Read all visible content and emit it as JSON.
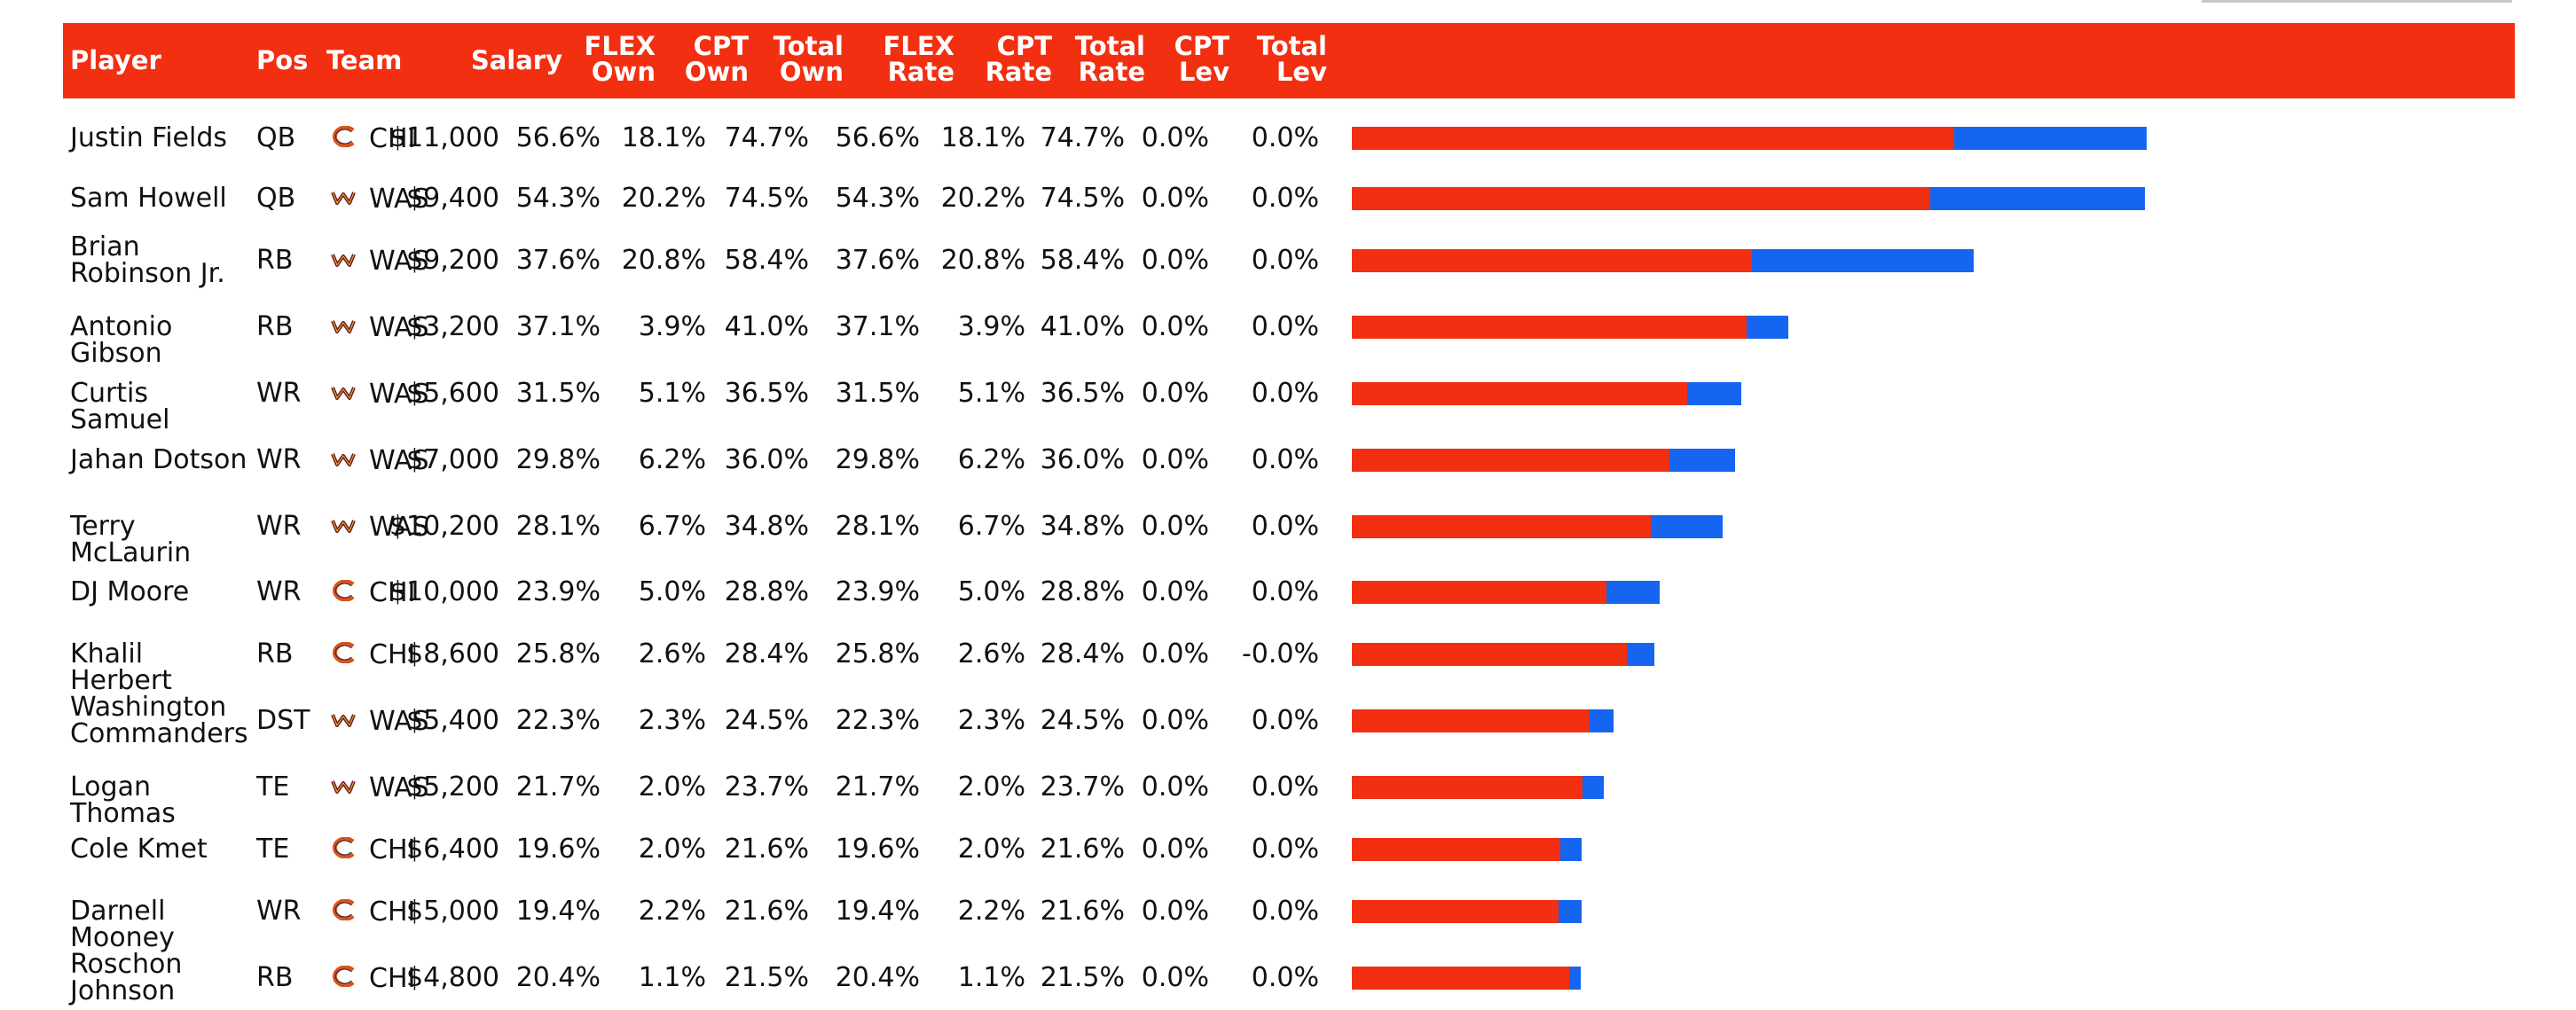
{
  "columns": [
    {
      "key": "player",
      "label": "Player"
    },
    {
      "key": "pos",
      "label": "Pos"
    },
    {
      "key": "team",
      "label": "Team"
    },
    {
      "key": "salary",
      "label": "Salary"
    },
    {
      "key": "flex_own",
      "label": "FLEX\nOwn"
    },
    {
      "key": "cpt_own",
      "label": "CPT\nOwn"
    },
    {
      "key": "total_own",
      "label": "Total\nOwn"
    },
    {
      "key": "flex_rate",
      "label": "FLEX\nRate"
    },
    {
      "key": "cpt_rate",
      "label": "CPT\nRate"
    },
    {
      "key": "total_rate",
      "label": "Total\nRate"
    },
    {
      "key": "cpt_lev",
      "label": "CPT\nLev"
    },
    {
      "key": "total_lev",
      "label": "Total\nLev"
    }
  ],
  "colors": {
    "header": "#f22f11",
    "flex_bar": "#f22f11",
    "cpt_bar": "#1565f0",
    "bears": "#d9531e",
    "commanders": "#6e1a1a"
  },
  "rows": [
    {
      "player": "Justin Fields",
      "pos": "QB",
      "team": "CHI",
      "logo": "bears-logo-icon",
      "salary": "$11,000",
      "flex_own": "56.6%",
      "cpt_own": "18.1%",
      "total_own": "74.7%",
      "flex_rate": "56.6%",
      "cpt_rate": "18.1%",
      "total_rate": "74.7%",
      "cpt_lev": "0.0%",
      "total_lev": "0.0%",
      "flex_value": 56.6,
      "cpt_value": 18.1
    },
    {
      "player": "Sam Howell",
      "pos": "QB",
      "team": "WAS",
      "logo": "commanders-logo-icon",
      "salary": "$9,400",
      "flex_own": "54.3%",
      "cpt_own": "20.2%",
      "total_own": "74.5%",
      "flex_rate": "54.3%",
      "cpt_rate": "20.2%",
      "total_rate": "74.5%",
      "cpt_lev": "0.0%",
      "total_lev": "0.0%",
      "flex_value": 54.3,
      "cpt_value": 20.2
    },
    {
      "player": "Brian Robinson Jr.",
      "pos": "RB",
      "team": "WAS",
      "logo": "commanders-logo-icon",
      "salary": "$9,200",
      "flex_own": "37.6%",
      "cpt_own": "20.8%",
      "total_own": "58.4%",
      "flex_rate": "37.6%",
      "cpt_rate": "20.8%",
      "total_rate": "58.4%",
      "cpt_lev": "0.0%",
      "total_lev": "0.0%",
      "flex_value": 37.6,
      "cpt_value": 20.8
    },
    {
      "player": "Antonio Gibson",
      "pos": "RB",
      "team": "WAS",
      "logo": "commanders-logo-icon",
      "salary": "$3,200",
      "flex_own": "37.1%",
      "cpt_own": "3.9%",
      "total_own": "41.0%",
      "flex_rate": "37.1%",
      "cpt_rate": "3.9%",
      "total_rate": "41.0%",
      "cpt_lev": "0.0%",
      "total_lev": "0.0%",
      "flex_value": 37.1,
      "cpt_value": 3.9
    },
    {
      "player": "Curtis Samuel",
      "pos": "WR",
      "team": "WAS",
      "logo": "commanders-logo-icon",
      "salary": "$5,600",
      "flex_own": "31.5%",
      "cpt_own": "5.1%",
      "total_own": "36.5%",
      "flex_rate": "31.5%",
      "cpt_rate": "5.1%",
      "total_rate": "36.5%",
      "cpt_lev": "0.0%",
      "total_lev": "0.0%",
      "flex_value": 31.5,
      "cpt_value": 5.1
    },
    {
      "player": "Jahan Dotson",
      "pos": "WR",
      "team": "WAS",
      "logo": "commanders-logo-icon",
      "salary": "$7,000",
      "flex_own": "29.8%",
      "cpt_own": "6.2%",
      "total_own": "36.0%",
      "flex_rate": "29.8%",
      "cpt_rate": "6.2%",
      "total_rate": "36.0%",
      "cpt_lev": "0.0%",
      "total_lev": "0.0%",
      "flex_value": 29.8,
      "cpt_value": 6.2
    },
    {
      "player": "Terry McLaurin",
      "pos": "WR",
      "team": "WAS",
      "logo": "commanders-logo-icon",
      "salary": "$10,200",
      "flex_own": "28.1%",
      "cpt_own": "6.7%",
      "total_own": "34.8%",
      "flex_rate": "28.1%",
      "cpt_rate": "6.7%",
      "total_rate": "34.8%",
      "cpt_lev": "0.0%",
      "total_lev": "0.0%",
      "flex_value": 28.1,
      "cpt_value": 6.7
    },
    {
      "player": "DJ Moore",
      "pos": "WR",
      "team": "CHI",
      "logo": "bears-logo-icon",
      "salary": "$10,000",
      "flex_own": "23.9%",
      "cpt_own": "5.0%",
      "total_own": "28.8%",
      "flex_rate": "23.9%",
      "cpt_rate": "5.0%",
      "total_rate": "28.8%",
      "cpt_lev": "0.0%",
      "total_lev": "0.0%",
      "flex_value": 23.9,
      "cpt_value": 5.0
    },
    {
      "player": "Khalil Herbert",
      "pos": "RB",
      "team": "CHI",
      "logo": "bears-logo-icon",
      "salary": "$8,600",
      "flex_own": "25.8%",
      "cpt_own": "2.6%",
      "total_own": "28.4%",
      "flex_rate": "25.8%",
      "cpt_rate": "2.6%",
      "total_rate": "28.4%",
      "cpt_lev": "0.0%",
      "total_lev": "-0.0%",
      "flex_value": 25.8,
      "cpt_value": 2.6
    },
    {
      "player": "Washington Commanders",
      "pos": "DST",
      "team": "WAS",
      "logo": "commanders-logo-icon",
      "salary": "$5,400",
      "flex_own": "22.3%",
      "cpt_own": "2.3%",
      "total_own": "24.5%",
      "flex_rate": "22.3%",
      "cpt_rate": "2.3%",
      "total_rate": "24.5%",
      "cpt_lev": "0.0%",
      "total_lev": "0.0%",
      "flex_value": 22.3,
      "cpt_value": 2.3
    },
    {
      "player": "Logan Thomas",
      "pos": "TE",
      "team": "WAS",
      "logo": "commanders-logo-icon",
      "salary": "$5,200",
      "flex_own": "21.7%",
      "cpt_own": "2.0%",
      "total_own": "23.7%",
      "flex_rate": "21.7%",
      "cpt_rate": "2.0%",
      "total_rate": "23.7%",
      "cpt_lev": "0.0%",
      "total_lev": "0.0%",
      "flex_value": 21.7,
      "cpt_value": 2.0
    },
    {
      "player": "Cole Kmet",
      "pos": "TE",
      "team": "CHI",
      "logo": "bears-logo-icon",
      "salary": "$6,400",
      "flex_own": "19.6%",
      "cpt_own": "2.0%",
      "total_own": "21.6%",
      "flex_rate": "19.6%",
      "cpt_rate": "2.0%",
      "total_rate": "21.6%",
      "cpt_lev": "0.0%",
      "total_lev": "0.0%",
      "flex_value": 19.6,
      "cpt_value": 2.0
    },
    {
      "player": "Darnell Mooney",
      "pos": "WR",
      "team": "CHI",
      "logo": "bears-logo-icon",
      "salary": "$5,000",
      "flex_own": "19.4%",
      "cpt_own": "2.2%",
      "total_own": "21.6%",
      "flex_rate": "19.4%",
      "cpt_rate": "2.2%",
      "total_rate": "21.6%",
      "cpt_lev": "0.0%",
      "total_lev": "0.0%",
      "flex_value": 19.4,
      "cpt_value": 2.2
    },
    {
      "player": "Roschon Johnson",
      "pos": "RB",
      "team": "CHI",
      "logo": "bears-logo-icon",
      "salary": "$4,800",
      "flex_own": "20.4%",
      "cpt_own": "1.1%",
      "total_own": "21.5%",
      "flex_rate": "20.4%",
      "cpt_rate": "1.1%",
      "total_rate": "21.5%",
      "cpt_lev": "0.0%",
      "total_lev": "0.0%",
      "flex_value": 20.4,
      "cpt_value": 1.1
    }
  ]
}
